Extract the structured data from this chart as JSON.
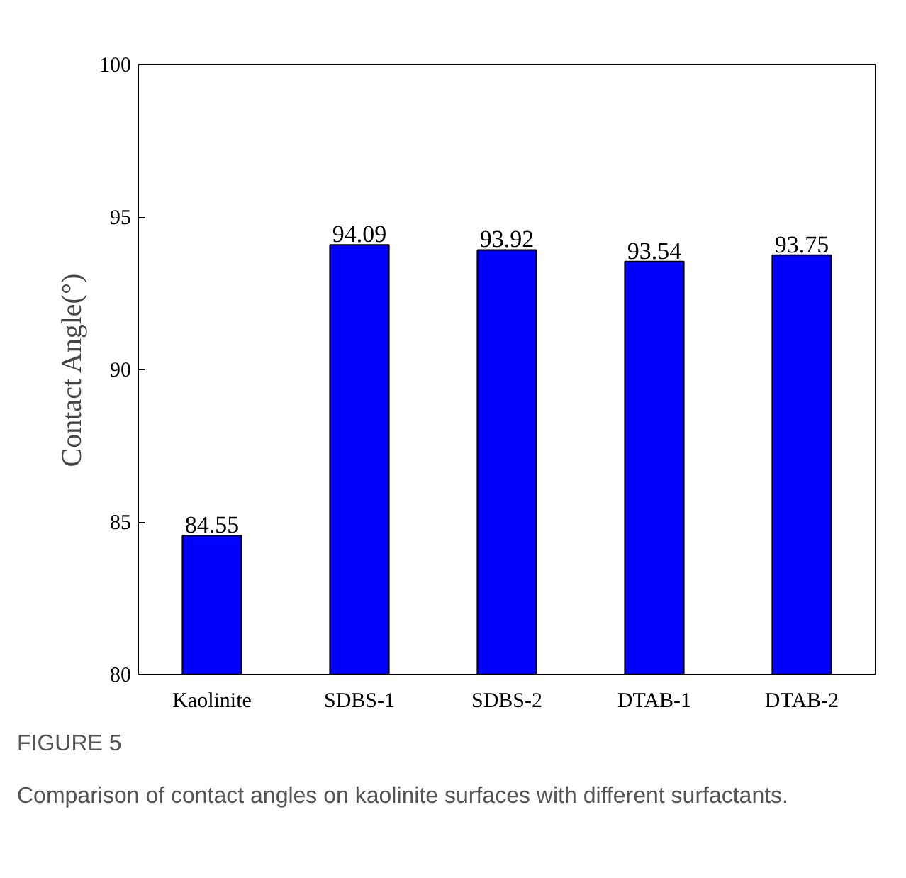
{
  "chart_data": {
    "type": "bar",
    "categories": [
      "Kaolinite",
      "SDBS-1",
      "SDBS-2",
      "DTAB-1",
      "DTAB-2"
    ],
    "values": [
      84.55,
      94.09,
      93.92,
      93.54,
      93.75
    ],
    "color": "#0000ff",
    "ylabel": "Contact Angle(°)",
    "ylim": [
      80,
      100
    ],
    "yticks": [
      80,
      85,
      90,
      95,
      100
    ],
    "data_labels": true,
    "grid": false,
    "annotations": [
      "FIGURE 5",
      "Comparison of contact angles on kaolinite surfaces with different surfactants."
    ]
  }
}
